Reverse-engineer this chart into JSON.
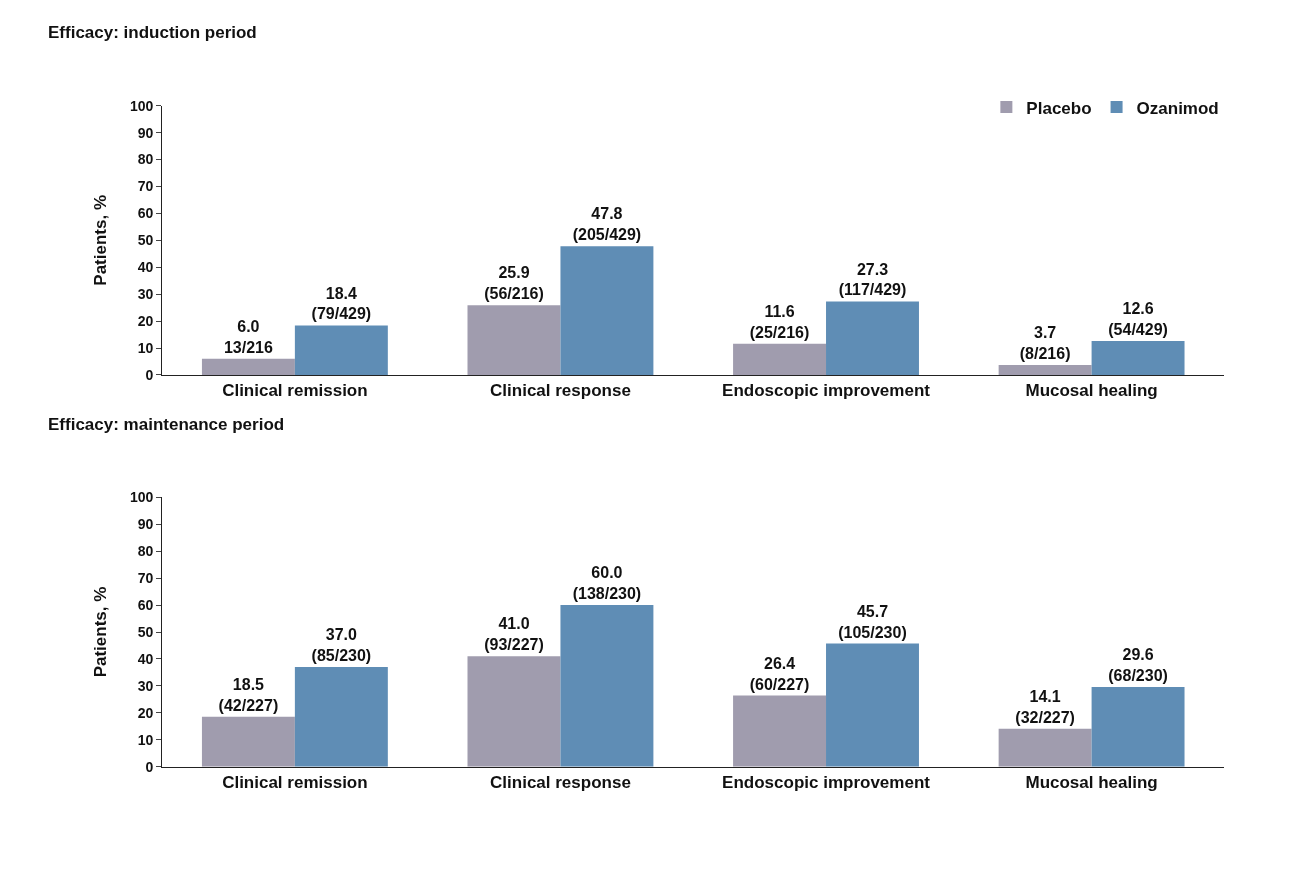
{
  "chart_data": [
    {
      "type": "bar",
      "title": "Efficacy: induction period",
      "ylabel": "Patients, %",
      "categories": [
        "Clinical remission",
        "Clinical response",
        "Endoscopic improvement",
        "Mucosal healing"
      ],
      "ylim": [
        0,
        100
      ],
      "yticks": [
        0,
        10,
        20,
        30,
        40,
        50,
        60,
        70,
        80,
        90,
        100
      ],
      "legend": "top right",
      "series": [
        {
          "name": "Placebo",
          "color": "#a09cae",
          "values": [
            6.0,
            25.9,
            11.6,
            3.7
          ],
          "value_labels": [
            "6.0\n13/216",
            "25.9\n(56/216)",
            "11.6\n(25/216)",
            "3.7\n(8/216)"
          ]
        },
        {
          "name": "Ozanimod",
          "color": "#5f8db5",
          "values": [
            18.4,
            47.8,
            27.3,
            12.6
          ],
          "value_labels": [
            "18.4\n(79/429)",
            "47.8\n(205/429)",
            "27.3\n(117/429)",
            "12.6\n(54/429)"
          ]
        }
      ]
    },
    {
      "type": "bar",
      "title": "Efficacy: maintenance period",
      "ylabel": "Patients, %",
      "categories": [
        "Clinical remission",
        "Clinical response",
        "Endoscopic improvement",
        "Mucosal healing"
      ],
      "ylim": [
        0,
        100
      ],
      "yticks": [
        0,
        10,
        20,
        30,
        40,
        50,
        60,
        70,
        80,
        90,
        100
      ],
      "series": [
        {
          "color": "#a09cae",
          "values": [
            18.5,
            41.0,
            26.4,
            14.1
          ],
          "value_labels": [
            "18.5\n(42/227)",
            "41.0\n(93/227)",
            "26.4\n(60/227)",
            "14.1\n(32/227)"
          ]
        },
        {
          "color": "#5f8db5",
          "values": [
            37.0,
            60.0,
            45.7,
            29.6
          ],
          "value_labels": [
            "37.0\n(85/230)",
            "60.0\n(138/230)",
            "45.7\n(105/230)",
            "29.6\n(68/230)"
          ]
        }
      ]
    }
  ]
}
